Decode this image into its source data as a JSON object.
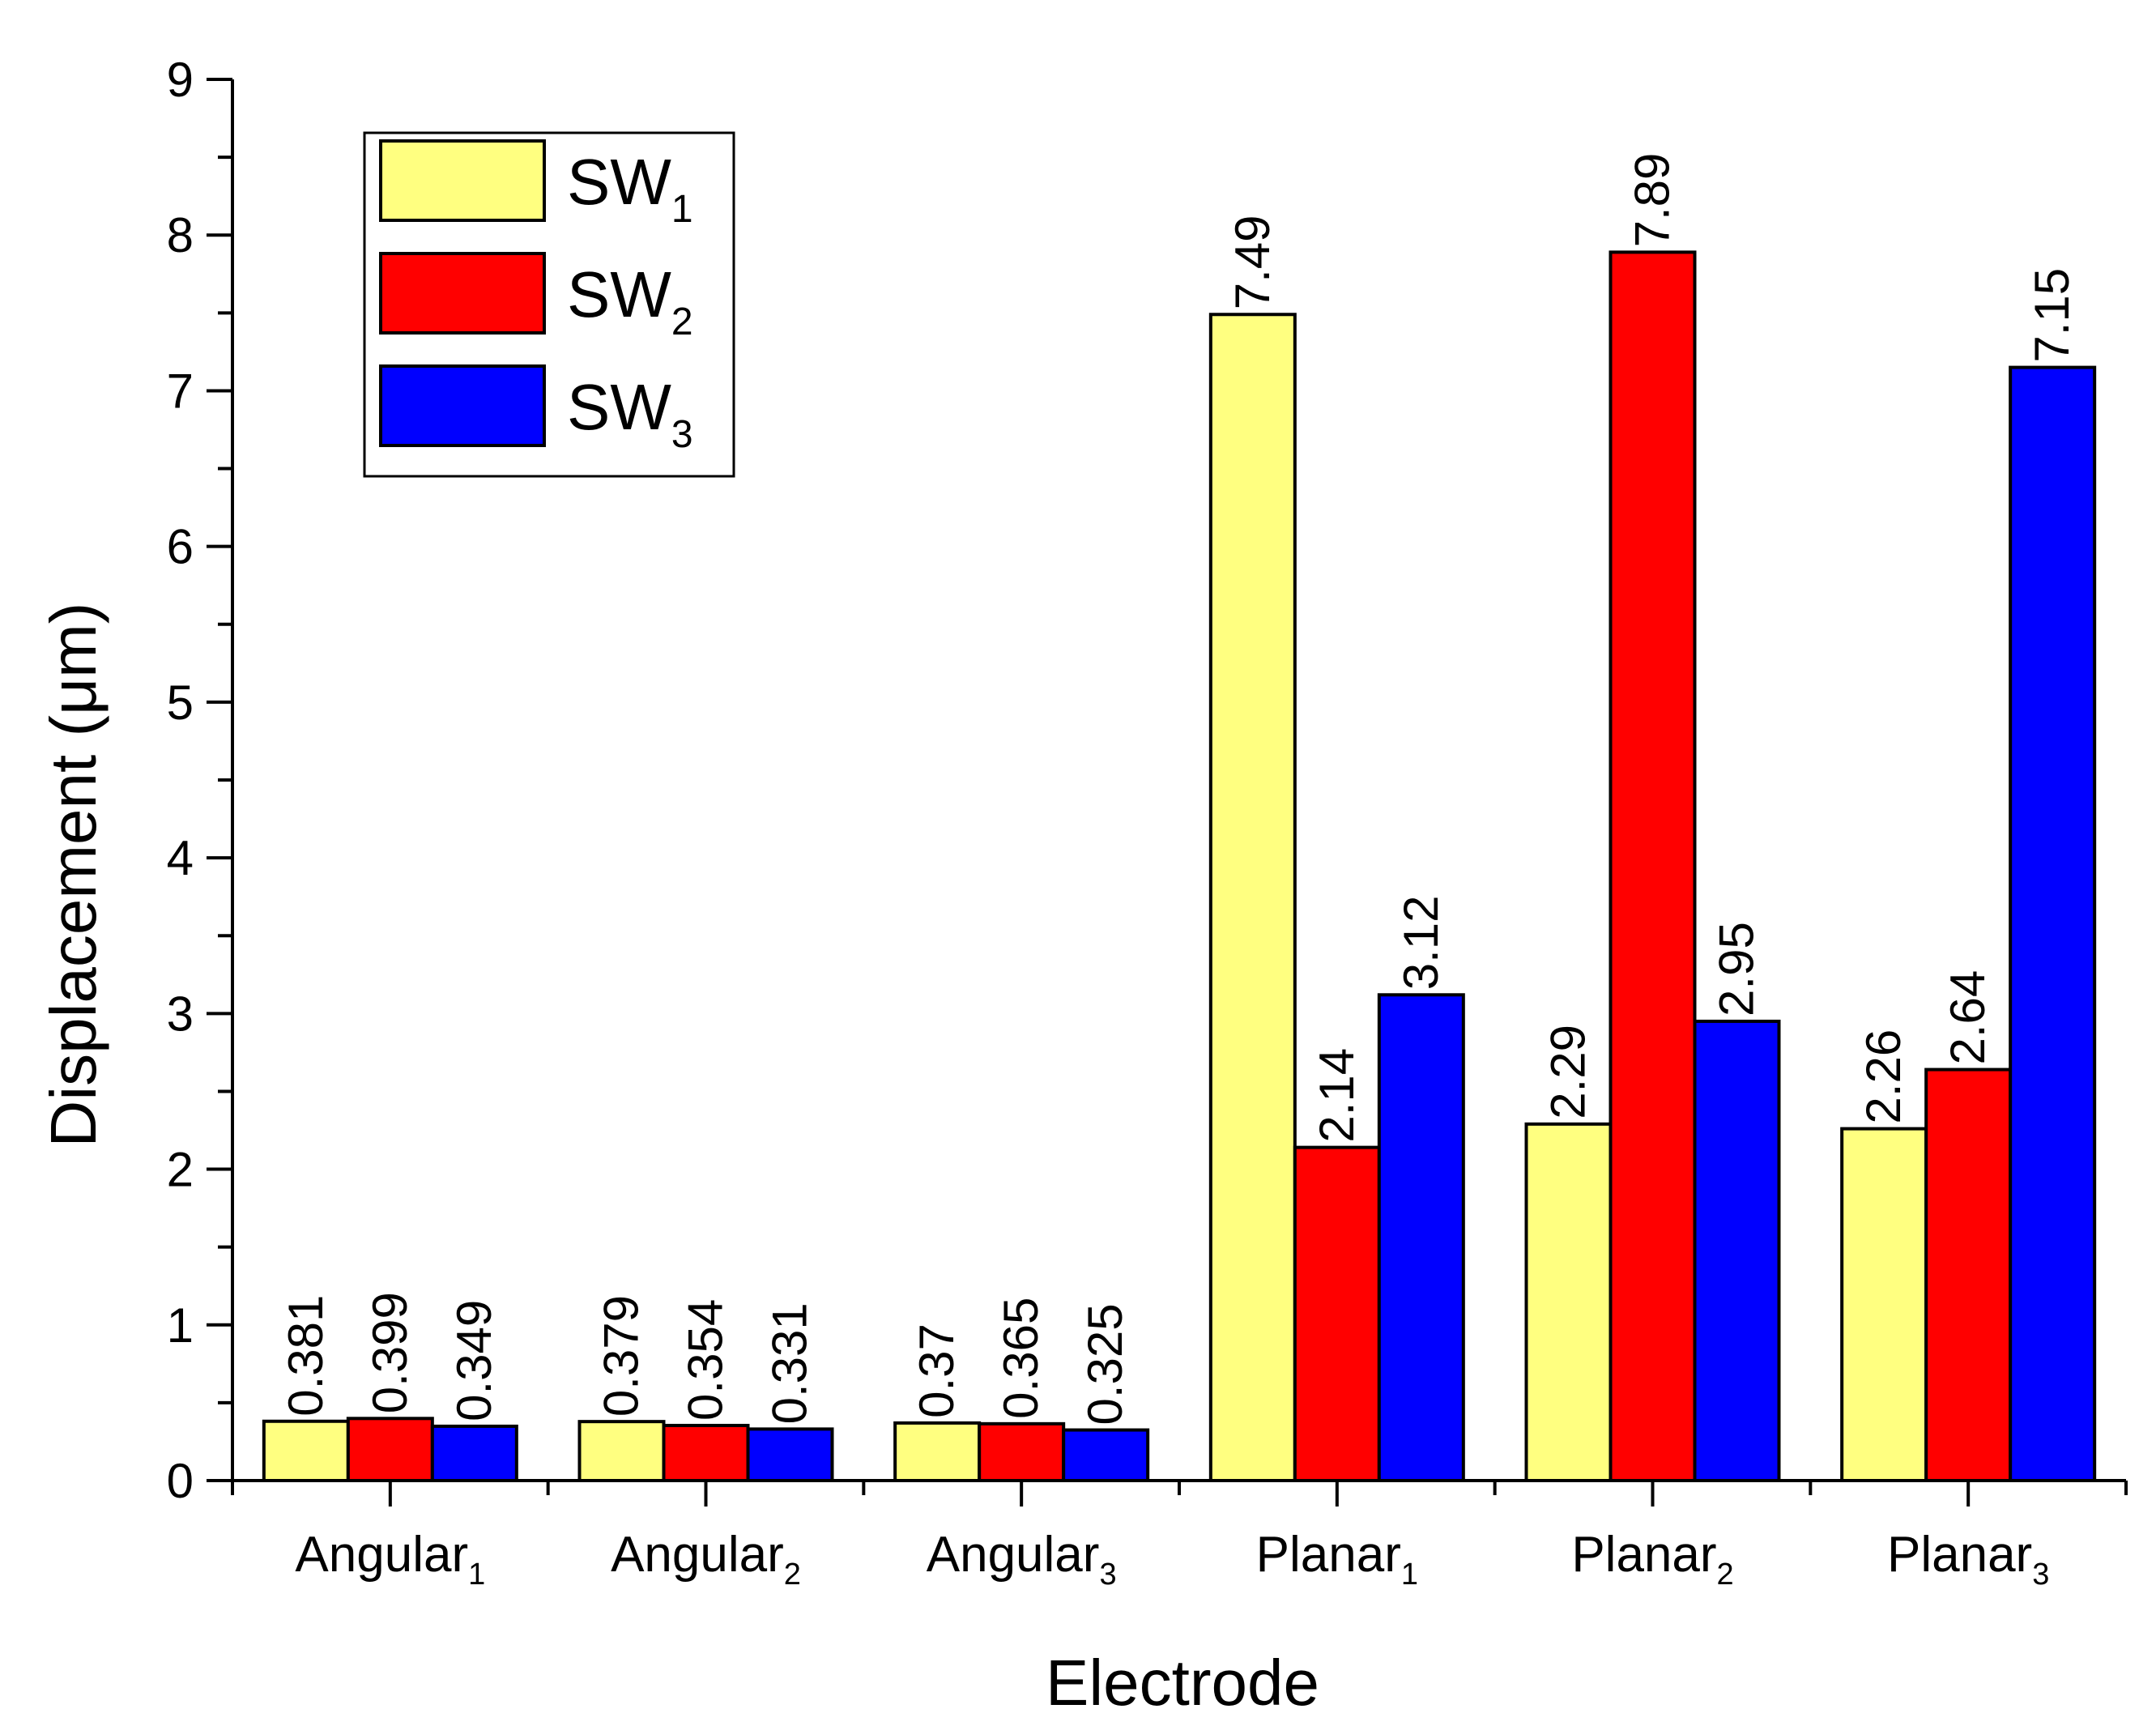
{
  "chart_data": {
    "type": "bar",
    "title": "",
    "xlabel": "Electrode",
    "ylabel": "Displacement (μm)",
    "ylim": [
      0,
      9
    ],
    "yticks": [
      0,
      1,
      2,
      3,
      4,
      5,
      6,
      7,
      8,
      9
    ],
    "categories": [
      {
        "base": "Angular",
        "sub": "1"
      },
      {
        "base": "Angular",
        "sub": "2"
      },
      {
        "base": "Angular",
        "sub": "3"
      },
      {
        "base": "Planar",
        "sub": "1"
      },
      {
        "base": "Planar",
        "sub": "2"
      },
      {
        "base": "Planar",
        "sub": "3"
      }
    ],
    "series": [
      {
        "name": "SW",
        "sub": "1",
        "color": "#ffff80",
        "values": [
          0.381,
          0.379,
          0.37,
          7.49,
          2.29,
          2.26
        ],
        "labels": [
          "0.381",
          "0.379",
          "0.37",
          "7.49",
          "2.29",
          "2.26"
        ]
      },
      {
        "name": "SW",
        "sub": "2",
        "color": "#ff0000",
        "values": [
          0.399,
          0.354,
          0.365,
          2.14,
          7.89,
          2.64
        ],
        "labels": [
          "0.399",
          "0.354",
          "0.365",
          "2.14",
          "7.89",
          "2.64"
        ]
      },
      {
        "name": "SW",
        "sub": "3",
        "color": "#0000ff",
        "values": [
          0.349,
          0.331,
          0.325,
          3.12,
          2.95,
          7.15
        ],
        "labels": [
          "0.349",
          "0.331",
          "0.325",
          "3.12",
          "2.95",
          "7.15"
        ]
      }
    ],
    "legend": "top-left",
    "grid": false
  }
}
